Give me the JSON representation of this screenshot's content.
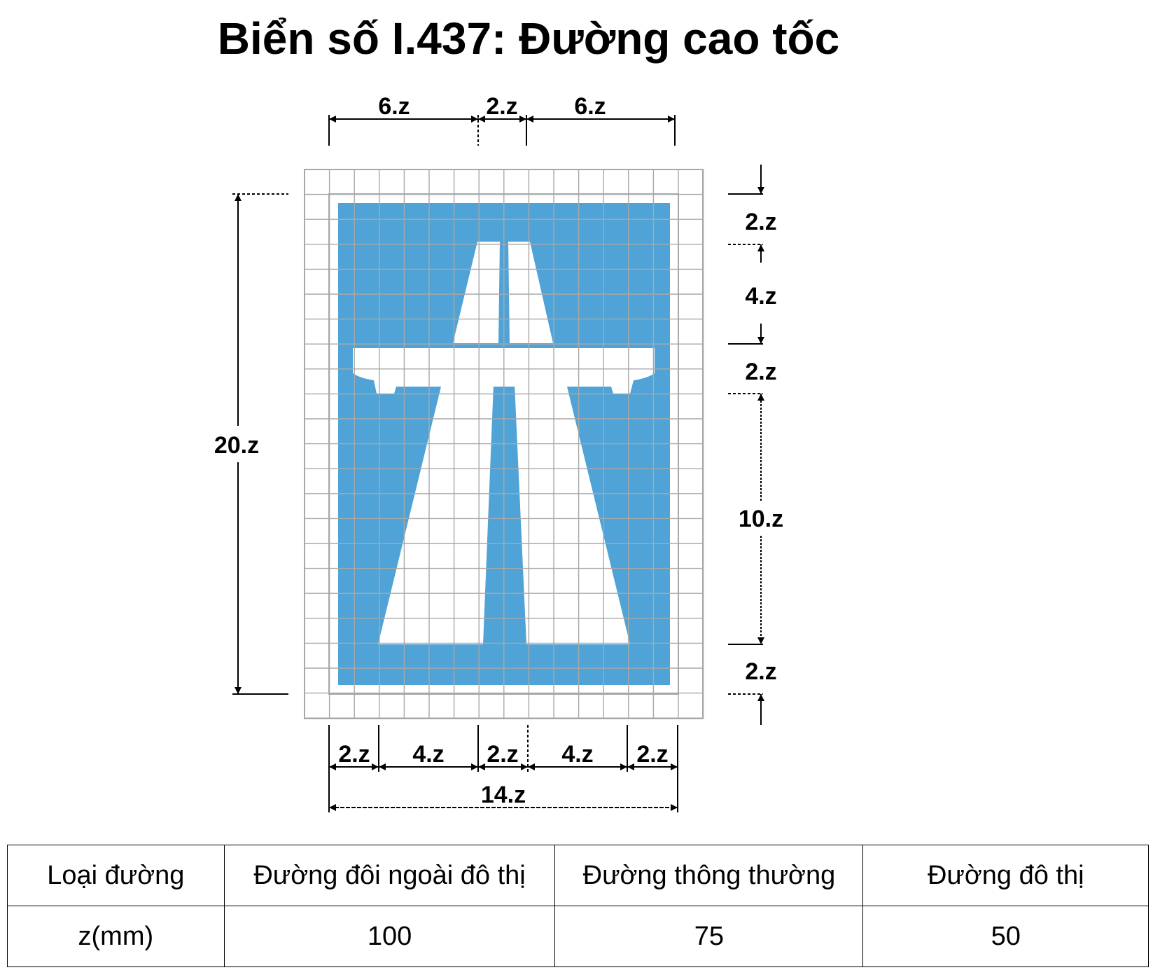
{
  "title": "Biển số I.437: Đường cao tốc",
  "colors": {
    "sign_blue": "#4fa3d6",
    "symbol_white": "#ffffff",
    "grid": "#a8a8a8",
    "dimension": "#000000"
  },
  "dimensions": {
    "top": [
      "6.z",
      "2.z",
      "6.z"
    ],
    "left": "20.z",
    "right": [
      "2.z",
      "4.z",
      "2.z",
      "10.z",
      "2.z"
    ],
    "bottom": [
      "2.z",
      "4.z",
      "2.z",
      "4.z",
      "2.z"
    ],
    "bottom_total": "14.z"
  },
  "table": {
    "header": [
      "Loại đường",
      "Đường đôi ngoài đô thị",
      "Đường thông thường",
      "Đường đô thị"
    ],
    "row": [
      "z(mm)",
      "100",
      "75",
      "50"
    ]
  }
}
